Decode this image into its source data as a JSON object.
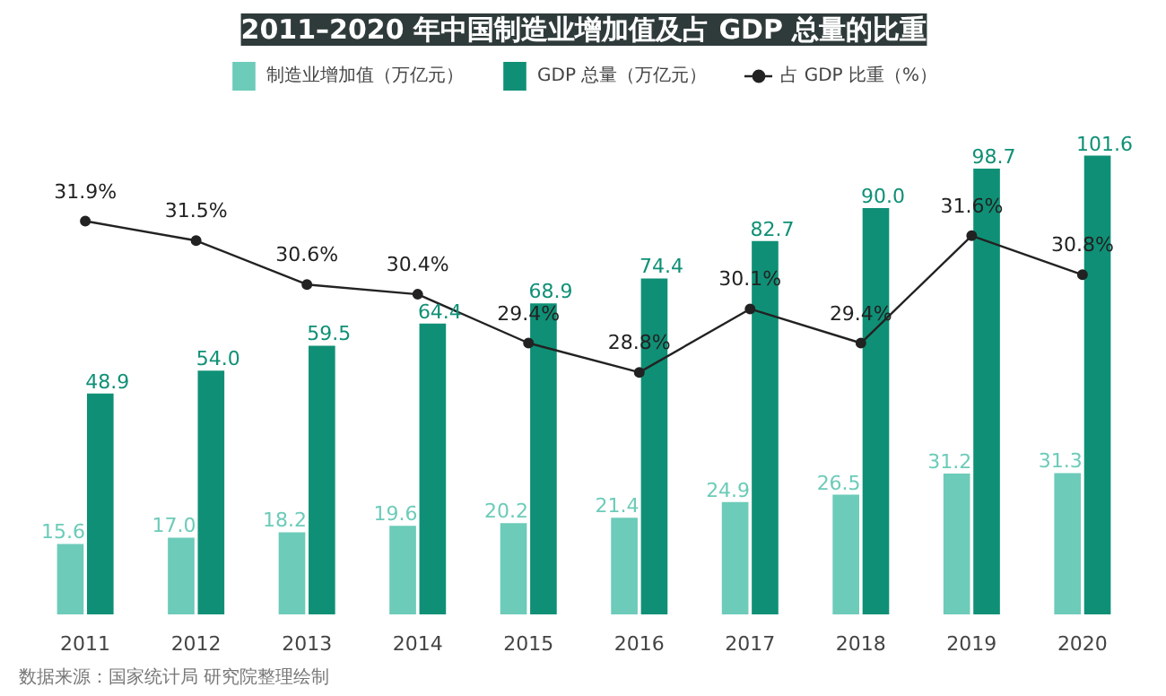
{
  "chart_data": {
    "type": "bar",
    "title": "2011–2020 年中国制造业增加值及占 GDP 总量的比重",
    "categories": [
      "2011",
      "2012",
      "2013",
      "2014",
      "2015",
      "2016",
      "2017",
      "2018",
      "2019",
      "2020"
    ],
    "series": [
      {
        "name": "制造业增加值（万亿元）",
        "color": "#6ccbb9",
        "values": [
          15.6,
          17.0,
          18.2,
          19.6,
          20.2,
          21.4,
          24.9,
          26.5,
          31.2,
          31.3
        ],
        "value_labels": [
          "15.6",
          "17.0",
          "18.2",
          "19.6",
          "20.2",
          "21.4",
          "24.9",
          "26.5",
          "31.2",
          "31.3"
        ]
      },
      {
        "name": "GDP 总量（万亿元）",
        "color": "#0f9076",
        "values": [
          48.9,
          54.0,
          59.5,
          64.4,
          68.9,
          74.4,
          82.7,
          90.0,
          98.7,
          101.6
        ],
        "value_labels": [
          "48.9",
          "54.0",
          "59.5",
          "64.4",
          "68.9",
          "74.4",
          "82.7",
          "90.0",
          "98.7",
          "101.6"
        ]
      },
      {
        "name": "占 GDP 比重（%）",
        "type": "line",
        "axis": "y2",
        "color": "#222222",
        "values": [
          31.9,
          31.5,
          30.6,
          30.4,
          29.4,
          28.8,
          30.1,
          29.4,
          31.6,
          30.8
        ],
        "value_labels": [
          "31.9%",
          "31.5%",
          "30.6%",
          "30.4%",
          "29.4%",
          "28.8%",
          "30.1%",
          "29.4%",
          "31.6%",
          "30.8%"
        ]
      }
    ],
    "marker": "circle",
    "legend": "top",
    "grid": false,
    "annotations": [
      "数据来源：国家统计局 研究院整理绘制"
    ]
  }
}
